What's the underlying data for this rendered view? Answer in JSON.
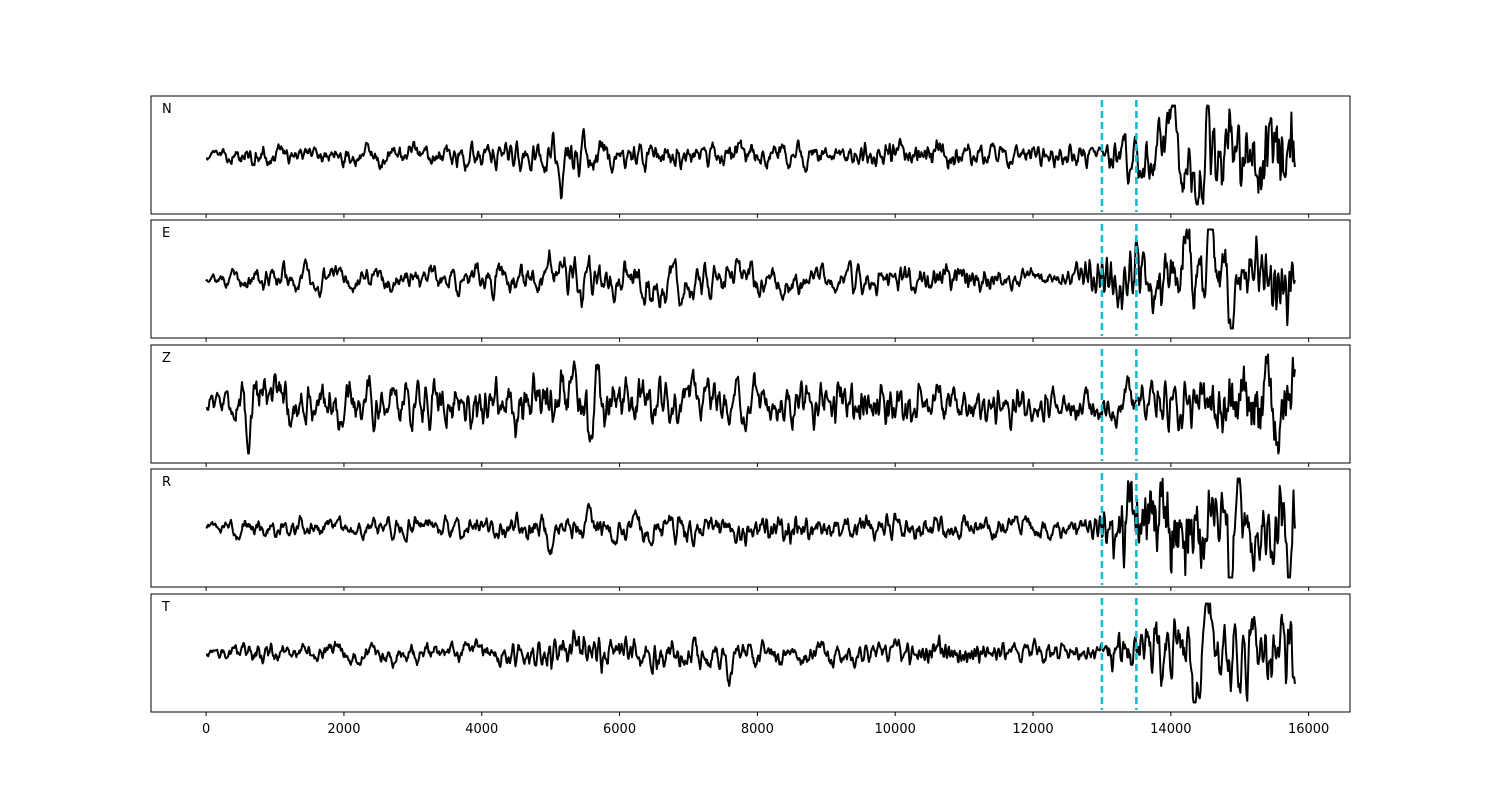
{
  "chart_data": {
    "type": "line",
    "title": "",
    "xlabel": "",
    "ylabel": "",
    "xlim": [
      -800,
      16600
    ],
    "xticks": [
      0,
      2000,
      4000,
      6000,
      8000,
      10000,
      12000,
      14000,
      16000
    ],
    "tick_labels": [
      "0",
      "2000",
      "4000",
      "6000",
      "8000",
      "10000",
      "12000",
      "14000",
      "16000"
    ],
    "x_range": [
      0,
      15800
    ],
    "grid": false,
    "line_color": "#000000",
    "marker_color": "#17becf",
    "markers": [
      13000,
      13500
    ],
    "panels": [
      {
        "label": "N",
        "seed": 11,
        "noise_env": [
          [
            0,
            0.08
          ],
          [
            700,
            0.2
          ],
          [
            1500,
            0.15
          ],
          [
            4700,
            0.2
          ],
          [
            5000,
            0.33
          ],
          [
            6500,
            0.22
          ],
          [
            9000,
            0.18
          ],
          [
            13000,
            0.15
          ],
          [
            13200,
            0.3
          ],
          [
            14000,
            0.6
          ],
          [
            15800,
            0.55
          ]
        ],
        "spikes": [
          [
            5150,
            -0.35
          ],
          [
            6000,
            0.36
          ],
          [
            14050,
            0.8
          ],
          [
            14380,
            -0.9
          ],
          [
            14550,
            0.55
          ],
          [
            14900,
            0.48
          ],
          [
            15450,
            0.62
          ]
        ]
      },
      {
        "label": "E",
        "seed": 23,
        "noise_env": [
          [
            0,
            0.08
          ],
          [
            700,
            0.22
          ],
          [
            3000,
            0.2
          ],
          [
            4800,
            0.3
          ],
          [
            6500,
            0.33
          ],
          [
            9000,
            0.22
          ],
          [
            12500,
            0.15
          ],
          [
            13200,
            0.45
          ],
          [
            14000,
            0.6
          ],
          [
            15800,
            0.55
          ]
        ],
        "spikes": [
          [
            6450,
            -0.32
          ],
          [
            14200,
            0.65
          ],
          [
            14600,
            0.78
          ],
          [
            14870,
            -0.9
          ],
          [
            15250,
            0.55
          ]
        ]
      },
      {
        "label": "Z",
        "seed": 37,
        "noise_env": [
          [
            0,
            0.15
          ],
          [
            400,
            0.25
          ],
          [
            600,
            0.55
          ],
          [
            1200,
            0.4
          ],
          [
            4000,
            0.38
          ],
          [
            5000,
            0.6
          ],
          [
            6000,
            0.45
          ],
          [
            9000,
            0.35
          ],
          [
            13000,
            0.28
          ],
          [
            14000,
            0.4
          ],
          [
            15800,
            0.45
          ]
        ],
        "spikes": [
          [
            620,
            -0.92
          ],
          [
            640,
            0.68
          ],
          [
            830,
            0.65
          ],
          [
            5580,
            -0.8
          ],
          [
            5700,
            0.5
          ],
          [
            15400,
            0.82
          ],
          [
            15540,
            -0.82
          ],
          [
            15800,
            0.75
          ]
        ]
      },
      {
        "label": "R",
        "seed": 51,
        "noise_env": [
          [
            0,
            0.07
          ],
          [
            600,
            0.17
          ],
          [
            2000,
            0.13
          ],
          [
            4000,
            0.18
          ],
          [
            5500,
            0.22
          ],
          [
            9000,
            0.2
          ],
          [
            12800,
            0.15
          ],
          [
            13200,
            0.5
          ],
          [
            14000,
            0.58
          ],
          [
            15800,
            0.55
          ]
        ],
        "spikes": [
          [
            5000,
            -0.34
          ],
          [
            5560,
            0.32
          ],
          [
            13400,
            0.65
          ],
          [
            14620,
            0.8
          ],
          [
            14870,
            -0.92
          ],
          [
            15720,
            -0.6
          ]
        ]
      },
      {
        "label": "T",
        "seed": 67,
        "noise_env": [
          [
            0,
            0.07
          ],
          [
            600,
            0.2
          ],
          [
            1500,
            0.15
          ],
          [
            4700,
            0.2
          ],
          [
            5000,
            0.3
          ],
          [
            7000,
            0.26
          ],
          [
            9000,
            0.18
          ],
          [
            13000,
            0.15
          ],
          [
            13200,
            0.32
          ],
          [
            14000,
            0.6
          ],
          [
            15800,
            0.5
          ]
        ],
        "spikes": [
          [
            7600,
            -0.33
          ],
          [
            14060,
            0.82
          ],
          [
            14350,
            -0.95
          ],
          [
            14550,
            0.62
          ],
          [
            15200,
            0.5
          ]
        ]
      }
    ]
  }
}
